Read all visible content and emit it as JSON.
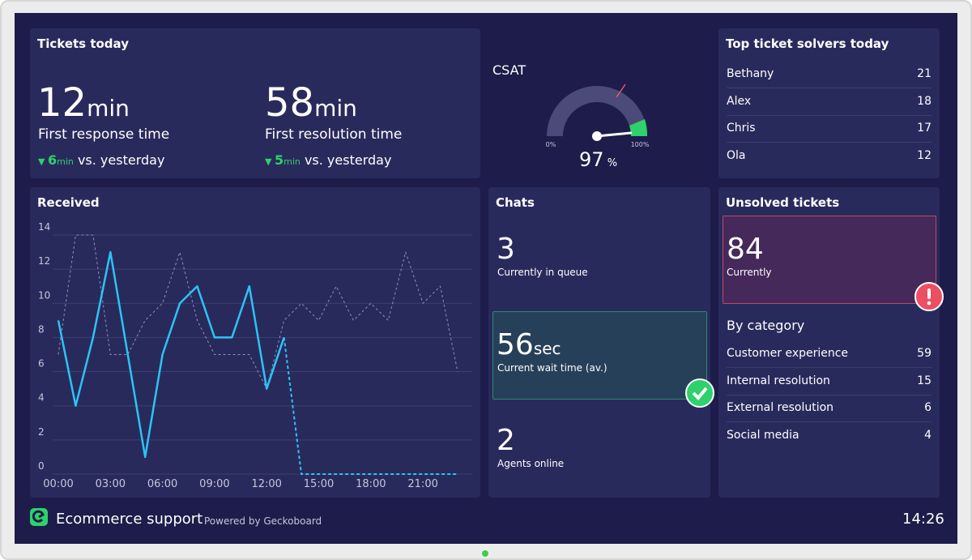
{
  "tickets_today": {
    "title": "Tickets today",
    "metrics": [
      {
        "value": "12",
        "unit": "min",
        "label": "First response time",
        "change": "6",
        "change_unit": "min",
        "comparison": "vs. yesterday"
      },
      {
        "value": "58",
        "unit": "min",
        "label": "First resolution time",
        "change": "5",
        "change_unit": "min",
        "comparison": "vs. yesterday"
      }
    ],
    "csat": {
      "label": "CSAT",
      "value": 97,
      "unit": "%",
      "min_label": "0%",
      "max_label": "100%"
    }
  },
  "top_solvers": {
    "title": "Top ticket solvers today",
    "rows": [
      [
        "Bethany",
        "21"
      ],
      [
        "Alex",
        "18"
      ],
      [
        "Chris",
        "17"
      ],
      [
        "Ola",
        "12"
      ]
    ]
  },
  "chart_data": {
    "type": "line",
    "title": "Received",
    "x": [
      0,
      1,
      2,
      3,
      4,
      5,
      6,
      7,
      8,
      9,
      10,
      11,
      12,
      13,
      14,
      15,
      16,
      17,
      18,
      19,
      20,
      21,
      22,
      23
    ],
    "xlim": [
      0,
      23
    ],
    "xticks": [
      {
        "value": 0,
        "label": "00:00"
      },
      {
        "value": 3,
        "label": "03:00"
      },
      {
        "value": 6,
        "label": "06:00"
      },
      {
        "value": 9,
        "label": "09:00"
      },
      {
        "value": 12,
        "label": "12:00"
      },
      {
        "value": 15,
        "label": "15:00"
      },
      {
        "value": 18,
        "label": "18:00"
      },
      {
        "value": 21,
        "label": "21:00"
      }
    ],
    "ylim": [
      0,
      14
    ],
    "yticks": [
      0,
      2,
      4,
      6,
      8,
      10,
      12,
      14
    ],
    "grid": true,
    "series": [
      {
        "color": "#8e8fb8",
        "dashed": true,
        "values": [
          7,
          14,
          14,
          7,
          7,
          9,
          10,
          13,
          9,
          7,
          7,
          7,
          5,
          9,
          10,
          9,
          11,
          9,
          10,
          9,
          13,
          10,
          11,
          6
        ]
      },
      {
        "color": "#2cc3f5",
        "dash_from_index": 13,
        "values": [
          9,
          4,
          8,
          13,
          7,
          1,
          7,
          10,
          11,
          8,
          8,
          11,
          5,
          8,
          0,
          0,
          0,
          0,
          0,
          0,
          0,
          0,
          0,
          0
        ]
      }
    ]
  },
  "chats": {
    "title": "Chats",
    "items": [
      {
        "value": "3",
        "label": "Currently in queue"
      },
      {
        "value": "56",
        "unit": "sec",
        "label": "Current wait time (av.)"
      },
      {
        "value": "2",
        "label": "Agents online"
      }
    ]
  },
  "unsolved": {
    "title": "Unsolved tickets",
    "current": {
      "value": "84",
      "label": "Currently"
    },
    "category_title": "By category",
    "rows": [
      [
        "Customer experience",
        "59"
      ],
      [
        "Internal resolution",
        "15"
      ],
      [
        "External resolution",
        "6"
      ],
      [
        "Social media",
        "4"
      ]
    ]
  },
  "footer": {
    "name": "Ecommerce support",
    "powered_by": "Powered by Geckoboard",
    "time": "14:26"
  }
}
